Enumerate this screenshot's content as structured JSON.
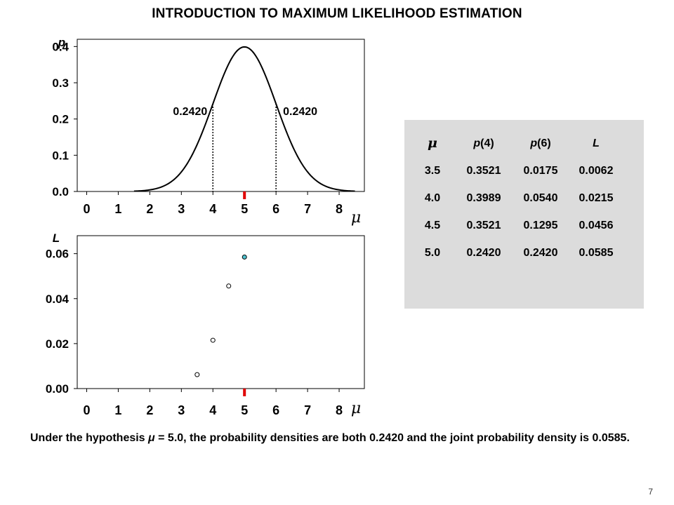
{
  "slide_title": "INTRODUCTION TO MAXIMUM LIKELIHOOD ESTIMATION",
  "caption": {
    "prefix": "Under the hypothesis ",
    "mu_symbol": "μ",
    "suffix": " = 5.0, the probability densities are both 0.2420 and the joint probability density is 0.0585."
  },
  "page_number": "7",
  "table": {
    "headers": [
      "μ",
      "p",
      "(4)",
      "p",
      "(6)",
      "L"
    ],
    "rows": [
      [
        "3.5",
        "0.3521",
        "0.0175",
        "0.0062"
      ],
      [
        "4.0",
        "0.3989",
        "0.0540",
        "0.0215"
      ],
      [
        "4.5",
        "0.3521",
        "0.1295",
        "0.0456"
      ],
      [
        "5.0",
        "0.2420",
        "0.2420",
        "0.0585"
      ]
    ]
  },
  "chart_data": [
    {
      "type": "line",
      "ylabel": "p",
      "xlabel": "μ",
      "xlim": [
        -0.3,
        8.8
      ],
      "ylim": [
        0,
        0.42
      ],
      "xticks": [
        0,
        1,
        2,
        3,
        4,
        5,
        6,
        7,
        8
      ],
      "yticks": [
        0.0,
        0.1,
        0.2,
        0.3,
        0.4
      ],
      "ytick_labels": [
        "0.0",
        "0.1",
        "0.2",
        "0.3",
        "0.4"
      ],
      "curve": {
        "distribution": "normal",
        "mean": 5.0,
        "sd": 1.0
      },
      "annotations": [
        {
          "x": 4,
          "y": 0.242,
          "label": "0.2420"
        },
        {
          "x": 6,
          "y": 0.242,
          "label": "0.2420"
        }
      ],
      "marker_x": 5,
      "marker_color": "#e00000",
      "grid": false
    },
    {
      "type": "scatter",
      "ylabel": "L",
      "xlabel": "μ",
      "xlim": [
        -0.3,
        8.8
      ],
      "ylim": [
        0,
        0.068
      ],
      "xticks": [
        0,
        1,
        2,
        3,
        4,
        5,
        6,
        7,
        8
      ],
      "yticks": [
        0.0,
        0.02,
        0.04,
        0.06
      ],
      "ytick_labels": [
        "0.00",
        "0.02",
        "0.04",
        "0.06"
      ],
      "points": [
        {
          "x": 3.5,
          "y": 0.0062
        },
        {
          "x": 4.0,
          "y": 0.0215
        },
        {
          "x": 4.5,
          "y": 0.0456
        },
        {
          "x": 5.0,
          "y": 0.0585,
          "highlight": true
        }
      ],
      "highlight_color": "#4fc3d0",
      "marker_x": 5,
      "marker_color": "#e00000",
      "grid": false
    }
  ]
}
